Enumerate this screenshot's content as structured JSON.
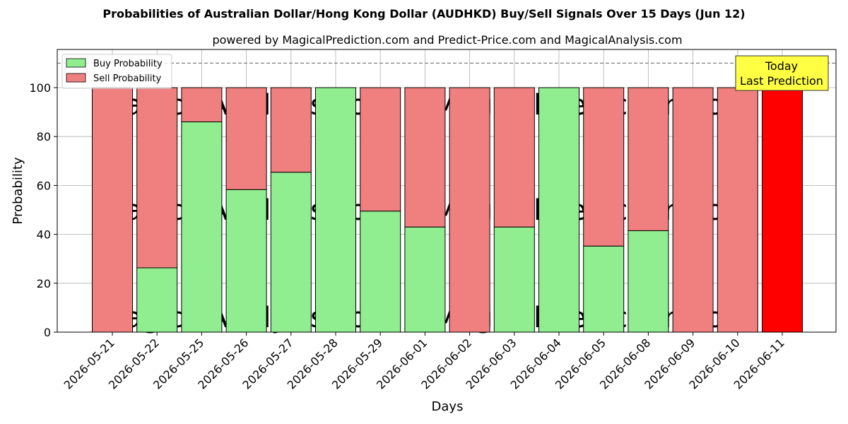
{
  "chart_data": {
    "type": "bar",
    "stacked": true,
    "title": "Probabilities of Australian Dollar/Hong Kong Dollar (AUDHKD) Buy/Sell Signals Over 15 Days (Jun 12)",
    "subtitle": "powered by MagicalPrediction.com and Predict-Price.com and MagicalAnalysis.com",
    "xlabel": "Days",
    "ylabel": "Probability",
    "ylim": [
      0,
      115
    ],
    "yticks": [
      0,
      20,
      40,
      60,
      80,
      100
    ],
    "reference_line": 110,
    "grid": true,
    "legend_position": "top-left",
    "categories": [
      "2026-05-21",
      "2026-05-22",
      "2026-05-25",
      "2026-05-26",
      "2026-05-27",
      "2026-05-28",
      "2026-05-29",
      "2026-06-01",
      "2026-06-02",
      "2026-06-03",
      "2026-06-04",
      "2026-06-05",
      "2026-06-08",
      "2026-06-09",
      "2026-06-10",
      "2026-06-11"
    ],
    "series": [
      {
        "name": "Buy Probability",
        "color": "#90ee90",
        "values": [
          0,
          26.3,
          86,
          58.3,
          65.4,
          100,
          49.5,
          43,
          0,
          43,
          100,
          35.2,
          41.5,
          0,
          0,
          0
        ]
      },
      {
        "name": "Sell Probability",
        "color": "#f08080",
        "values": [
          100,
          73.7,
          14,
          41.7,
          34.6,
          0,
          50.5,
          57,
          100,
          57,
          0,
          64.8,
          58.5,
          100,
          100,
          100
        ]
      }
    ],
    "highlight": {
      "index": 15,
      "color": "#ff0000"
    },
    "annotation": {
      "lines": [
        "Today",
        "Last Prediction"
      ],
      "background": "#ffff44"
    },
    "watermarks": [
      "MagicalAnalysis.com",
      "MagicalPrediction.com"
    ]
  }
}
